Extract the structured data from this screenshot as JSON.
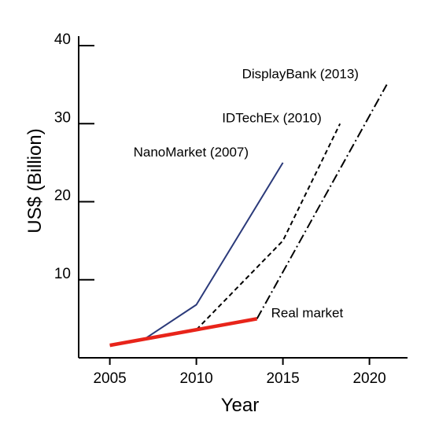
{
  "chart_data": {
    "type": "line",
    "xlabel": "Year",
    "ylabel": "US$ (Billion)",
    "xlim": [
      2003.2,
      2022.2
    ],
    "ylim": [
      0,
      40
    ],
    "x_ticks": [
      2005,
      2010,
      2015,
      2020
    ],
    "y_ticks": [
      10,
      20,
      30,
      40
    ],
    "grid": false,
    "series": [
      {
        "name": "NanoMarket (2007)",
        "style": "solid",
        "color": "#2b3a7a",
        "points": [
          [
            2005,
            1.6
          ],
          [
            2007,
            2.4
          ],
          [
            2010,
            6.8
          ],
          [
            2015,
            25
          ]
        ]
      },
      {
        "name": "IDTechEx (2010)",
        "style": "dashed",
        "color": "#000000",
        "points": [
          [
            2010,
            3.6
          ],
          [
            2015,
            15
          ],
          [
            2018.3,
            30
          ]
        ]
      },
      {
        "name": "DisplayBank (2013)",
        "style": "dashdot",
        "color": "#000000",
        "points": [
          [
            2013.5,
            5
          ],
          [
            2021,
            35
          ]
        ]
      },
      {
        "name": "Real market",
        "style": "solid-thick",
        "color": "#e8241a",
        "points": [
          [
            2005,
            1.6
          ],
          [
            2013.5,
            5
          ]
        ]
      }
    ]
  }
}
